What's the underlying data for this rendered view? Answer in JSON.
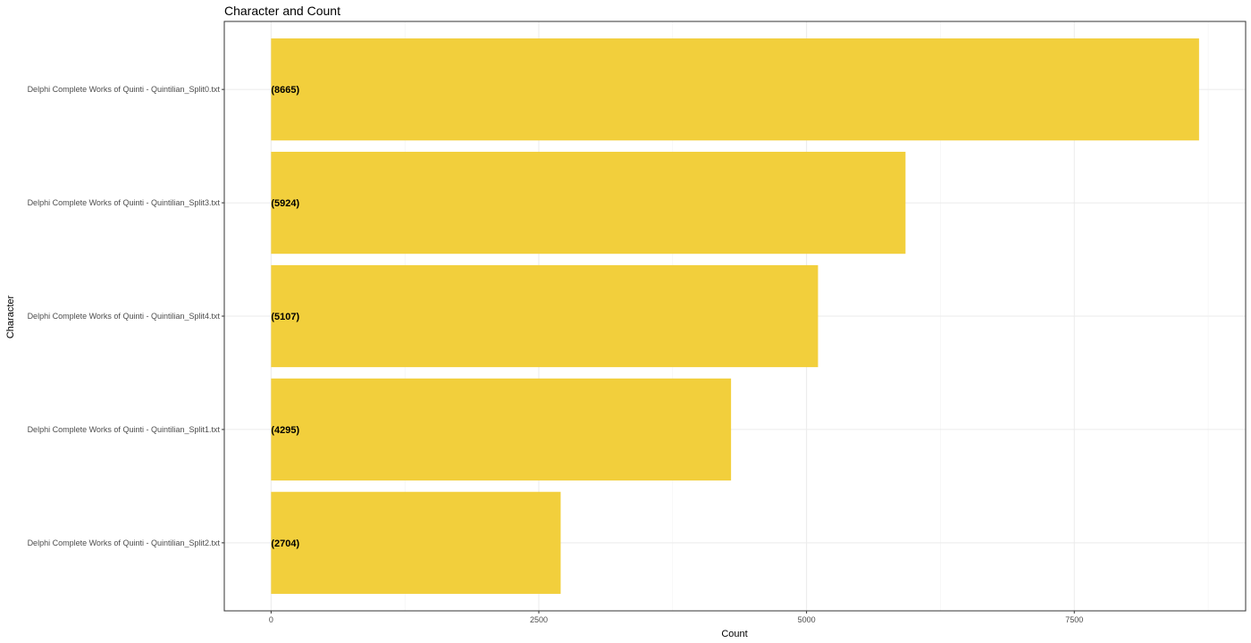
{
  "chart_data": {
    "type": "bar",
    "orientation": "horizontal",
    "title": "Character and Count",
    "xlabel": "Count",
    "ylabel": "Character",
    "categories": [
      "Delphi Complete Works of Quinti - Quintilian_Split0.txt",
      "Delphi Complete Works of Quinti - Quintilian_Split3.txt",
      "Delphi Complete Works of Quinti - Quintilian_Split4.txt",
      "Delphi Complete Works of Quinti - Quintilian_Split1.txt",
      "Delphi Complete Works of Quinti - Quintilian_Split2.txt"
    ],
    "values": [
      8665,
      5924,
      5107,
      4295,
      2704
    ],
    "data_labels": [
      "(8665)",
      "(5924)",
      "(5107)",
      "(4295)",
      "(2704)"
    ],
    "xticks": [
      0,
      2500,
      5000,
      7500
    ],
    "xtick_labels": [
      "0",
      "2500",
      "5000",
      "7500"
    ],
    "xlim": [
      -437,
      9100
    ],
    "grid": true,
    "bar_color": "#F2CF3C"
  }
}
